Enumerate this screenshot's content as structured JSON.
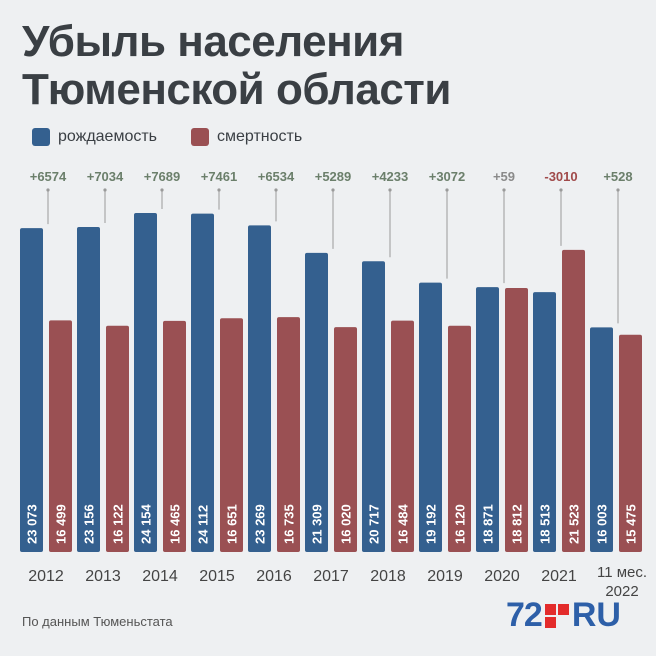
{
  "title_line1": "Убыль населения",
  "title_line2": "Тюменской области",
  "legend": {
    "births": "рождаемость",
    "deaths": "смертность"
  },
  "source": "По данным Тюменьстата",
  "logo": {
    "number": "72",
    "suffix": "RU"
  },
  "colors": {
    "births": "#34608f",
    "deaths": "#9a5053",
    "diff_positive": "#6b7f6b",
    "diff_neutral": "#8a8a8a",
    "diff_negative": "#a04a4a"
  },
  "chart_data": {
    "type": "bar",
    "categories": [
      "2012",
      "2013",
      "2014",
      "2015",
      "2016",
      "2017",
      "2018",
      "2019",
      "2020",
      "2021",
      "11 мес. 2022"
    ],
    "series": [
      {
        "name": "рождаемость",
        "values": [
          23073,
          23156,
          24154,
          24112,
          23269,
          21309,
          20717,
          19192,
          18871,
          18513,
          16003
        ],
        "labels": [
          "23 073",
          "23 156",
          "24 154",
          "24 112",
          "23 269",
          "21 309",
          "20 717",
          "19 192",
          "18 871",
          "18 513",
          "16 003"
        ]
      },
      {
        "name": "смертность",
        "values": [
          16499,
          16122,
          16465,
          16651,
          16735,
          16020,
          16484,
          16120,
          18812,
          21523,
          15475
        ],
        "labels": [
          "16 499",
          "16 122",
          "16 465",
          "16 651",
          "16 735",
          "16 020",
          "16 484",
          "16 120",
          "18 812",
          "21 523",
          "15 475"
        ]
      }
    ],
    "differences": [
      "+6574",
      "+7034",
      "+7689",
      "+7461",
      "+6534",
      "+5289",
      "+4233",
      "+3072",
      "+59",
      "-3010",
      "+528"
    ]
  }
}
